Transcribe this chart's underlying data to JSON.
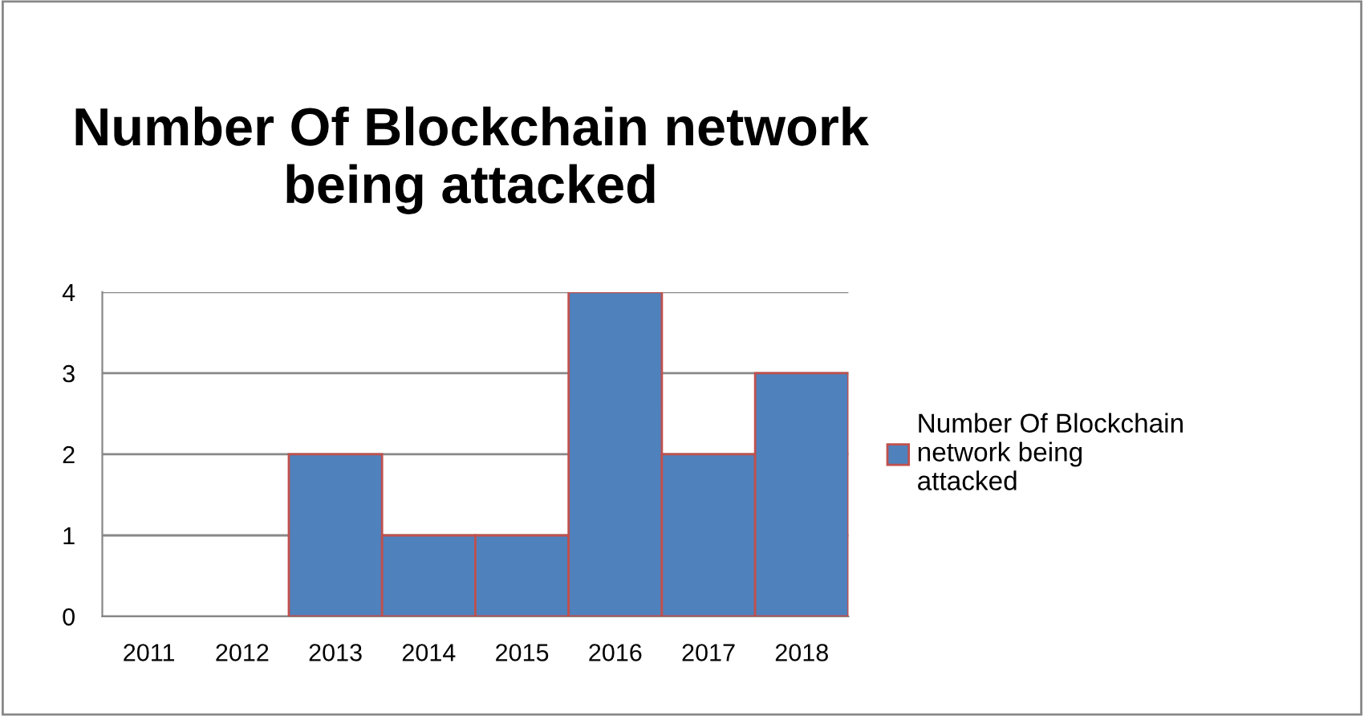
{
  "chart_data": {
    "type": "bar",
    "title": "Number Of Blockchain network being attacked",
    "categories": [
      "2011",
      "2012",
      "2013",
      "2014",
      "2015",
      "2016",
      "2017",
      "2018"
    ],
    "series": [
      {
        "name": "Number Of Blockchain network being attacked",
        "color": "#4f81bd",
        "values": [
          0,
          0,
          2,
          1,
          1,
          4,
          2,
          3
        ]
      }
    ],
    "ylim": [
      0,
      4
    ],
    "yticks": [
      0,
      1,
      2,
      3,
      4
    ],
    "grid": "y",
    "legend": "right"
  }
}
